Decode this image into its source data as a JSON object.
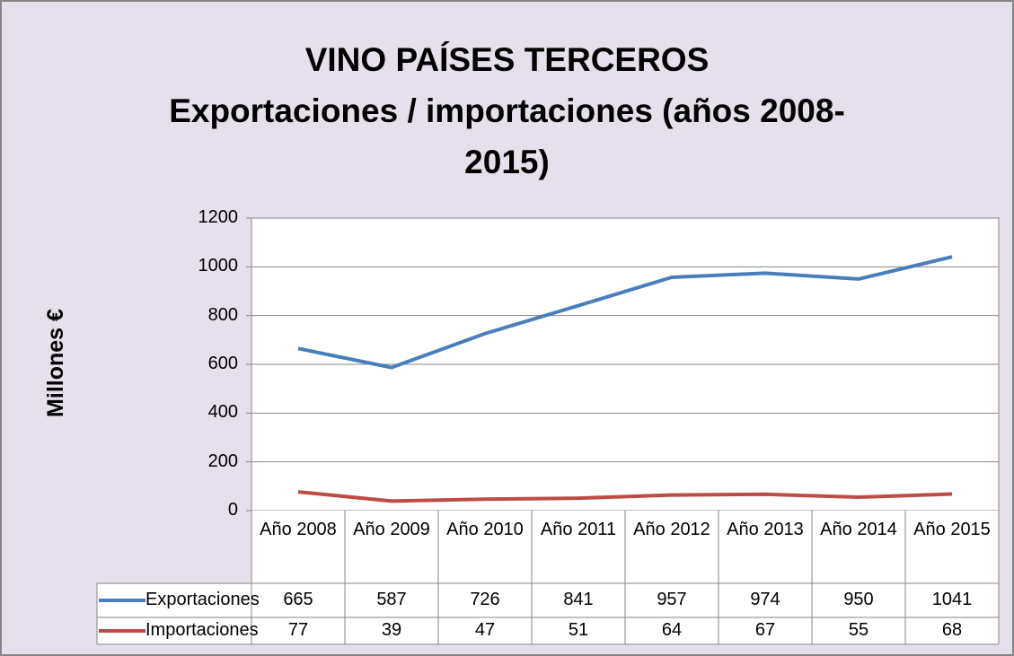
{
  "chart_data": {
    "type": "line",
    "title": [
      "VINO PAÍSES TERCEROS",
      "Exportaciones / importaciones (años 2008-",
      "2015)"
    ],
    "y_label": "Millones €",
    "categories": [
      "Año 2008",
      "Año 2009",
      "Año 2010",
      "Año 2011",
      "Año 2012",
      "Año 2013",
      "Año 2014",
      "Año 2015"
    ],
    "series": [
      {
        "name": "Exportaciones",
        "color": "#4a7ebb",
        "values": [
          665,
          587,
          726,
          841,
          957,
          974,
          950,
          1041
        ]
      },
      {
        "name": "Importaciones",
        "color": "#be4b48",
        "values": [
          77,
          39,
          47,
          51,
          64,
          67,
          55,
          68
        ]
      }
    ],
    "ylim": [
      0,
      1200
    ],
    "yticks": [
      0,
      200,
      400,
      600,
      800,
      1000,
      1200
    ],
    "grid": true,
    "data_table": true
  }
}
